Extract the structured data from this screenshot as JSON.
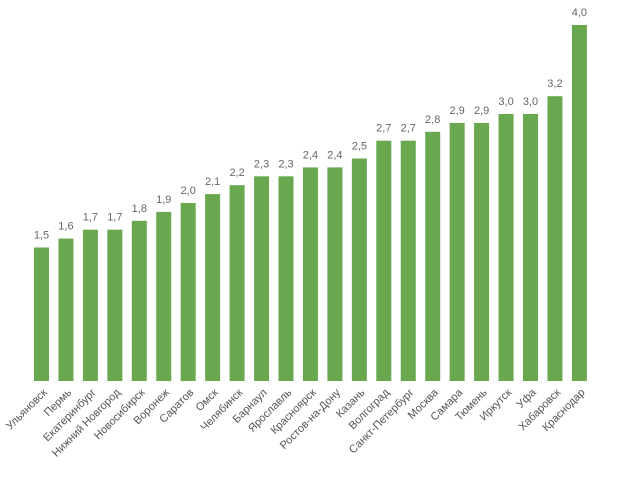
{
  "chart_data": {
    "type": "bar",
    "categories": [
      "Ульяновск",
      "Пермь",
      "Екатеринбург",
      "Нижний Новгород",
      "Новосибирск",
      "Воронеж",
      "Саратов",
      "Омск",
      "Челябинск",
      "Барнаул",
      "Ярославль",
      "Красноярск",
      "Ростов-на-Дону",
      "Казань",
      "Волгоград",
      "Санкт-Петербург",
      "Москва",
      "Самара",
      "Тюмень",
      "Иркутск",
      "Уфа",
      "Хабаровск",
      "Краснодар"
    ],
    "values": [
      1.5,
      1.6,
      1.7,
      1.7,
      1.8,
      1.9,
      2.0,
      2.1,
      2.2,
      2.3,
      2.3,
      2.4,
      2.4,
      2.5,
      2.7,
      2.7,
      2.8,
      2.9,
      2.9,
      3.0,
      3.0,
      3.2,
      4.0
    ],
    "value_labels": [
      "1,5",
      "1,6",
      "1,7",
      "1,7",
      "1,8",
      "1,9",
      "2,0",
      "2,1",
      "2,2",
      "2,3",
      "2,3",
      "2,4",
      "2,4",
      "2,5",
      "2,7",
      "2,7",
      "2,8",
      "2,9",
      "2,9",
      "3,0",
      "3,0",
      "3,2",
      "4,0"
    ],
    "title": "",
    "xlabel": "",
    "ylabel": "",
    "ylim": [
      0,
      4.0
    ],
    "grid": false,
    "legend": "none",
    "bar_color": "#6aa84f",
    "tick_label_rotation": -45
  }
}
